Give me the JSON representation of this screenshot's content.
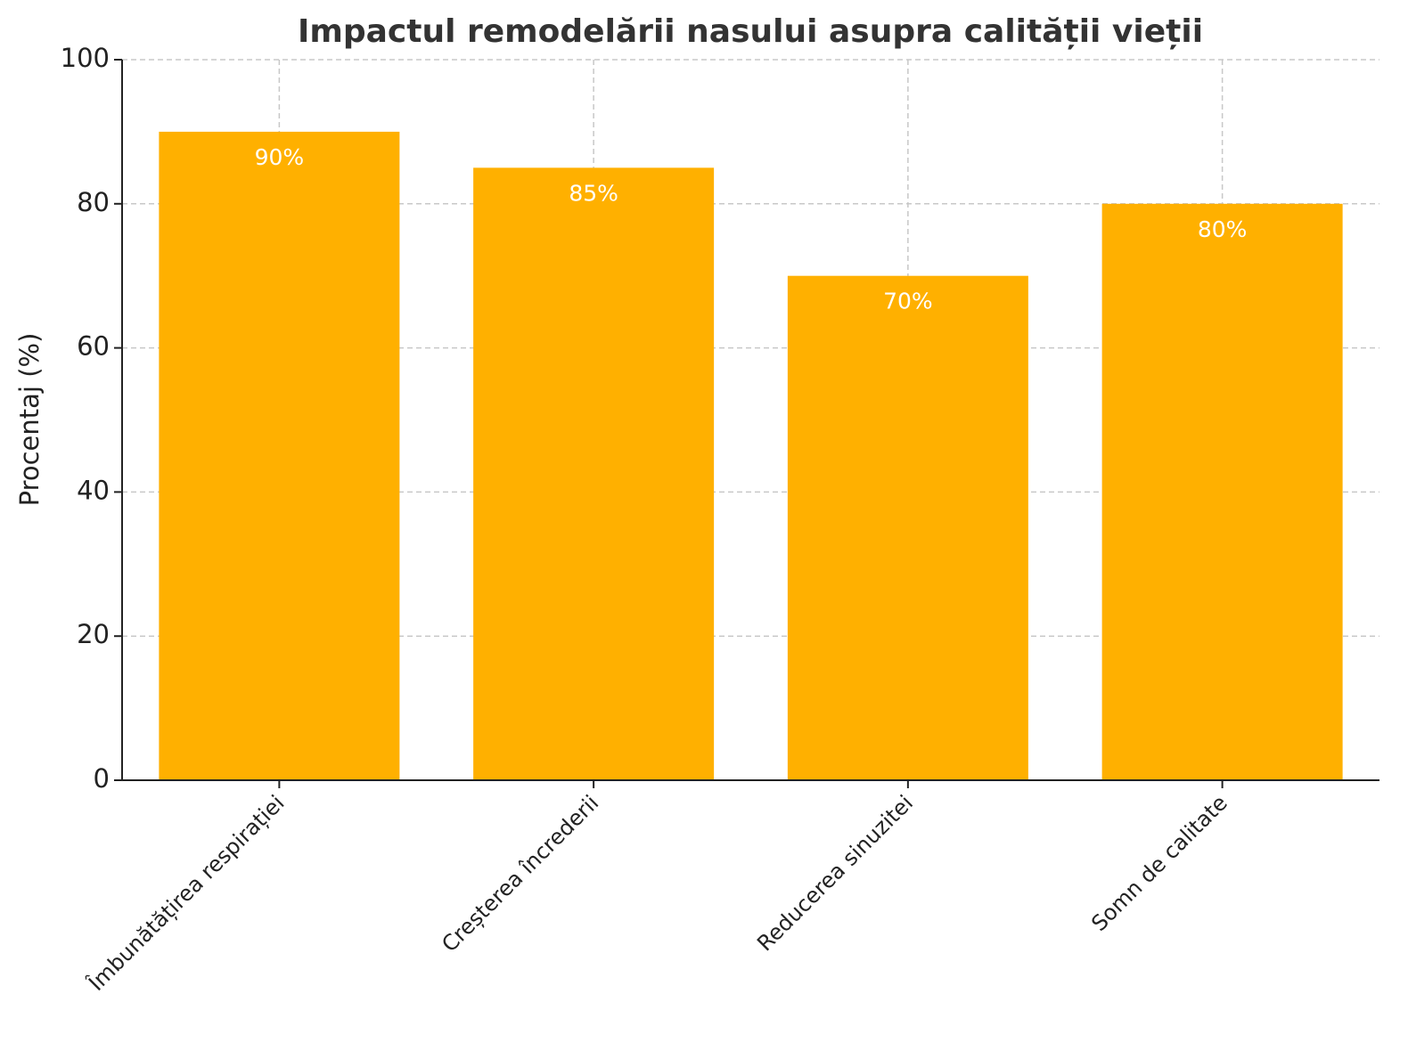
{
  "chart_data": {
    "type": "bar",
    "title": "Impactul remodelării nasului asupra calității vieții",
    "y_label": "Procentaj (%)",
    "categories": [
      "Îmbunătățirea respirației",
      "Creșterea încrederii",
      "Reducerea sinuzitei",
      "Somn de calitate"
    ],
    "values": [
      90,
      85,
      70,
      80
    ],
    "value_labels": [
      "90%",
      "85%",
      "70%",
      "80%"
    ],
    "color": "#ffb000",
    "ylim": [
      0,
      100
    ],
    "yticks": [
      0,
      20,
      40,
      60,
      80,
      100
    ],
    "grid": true
  }
}
